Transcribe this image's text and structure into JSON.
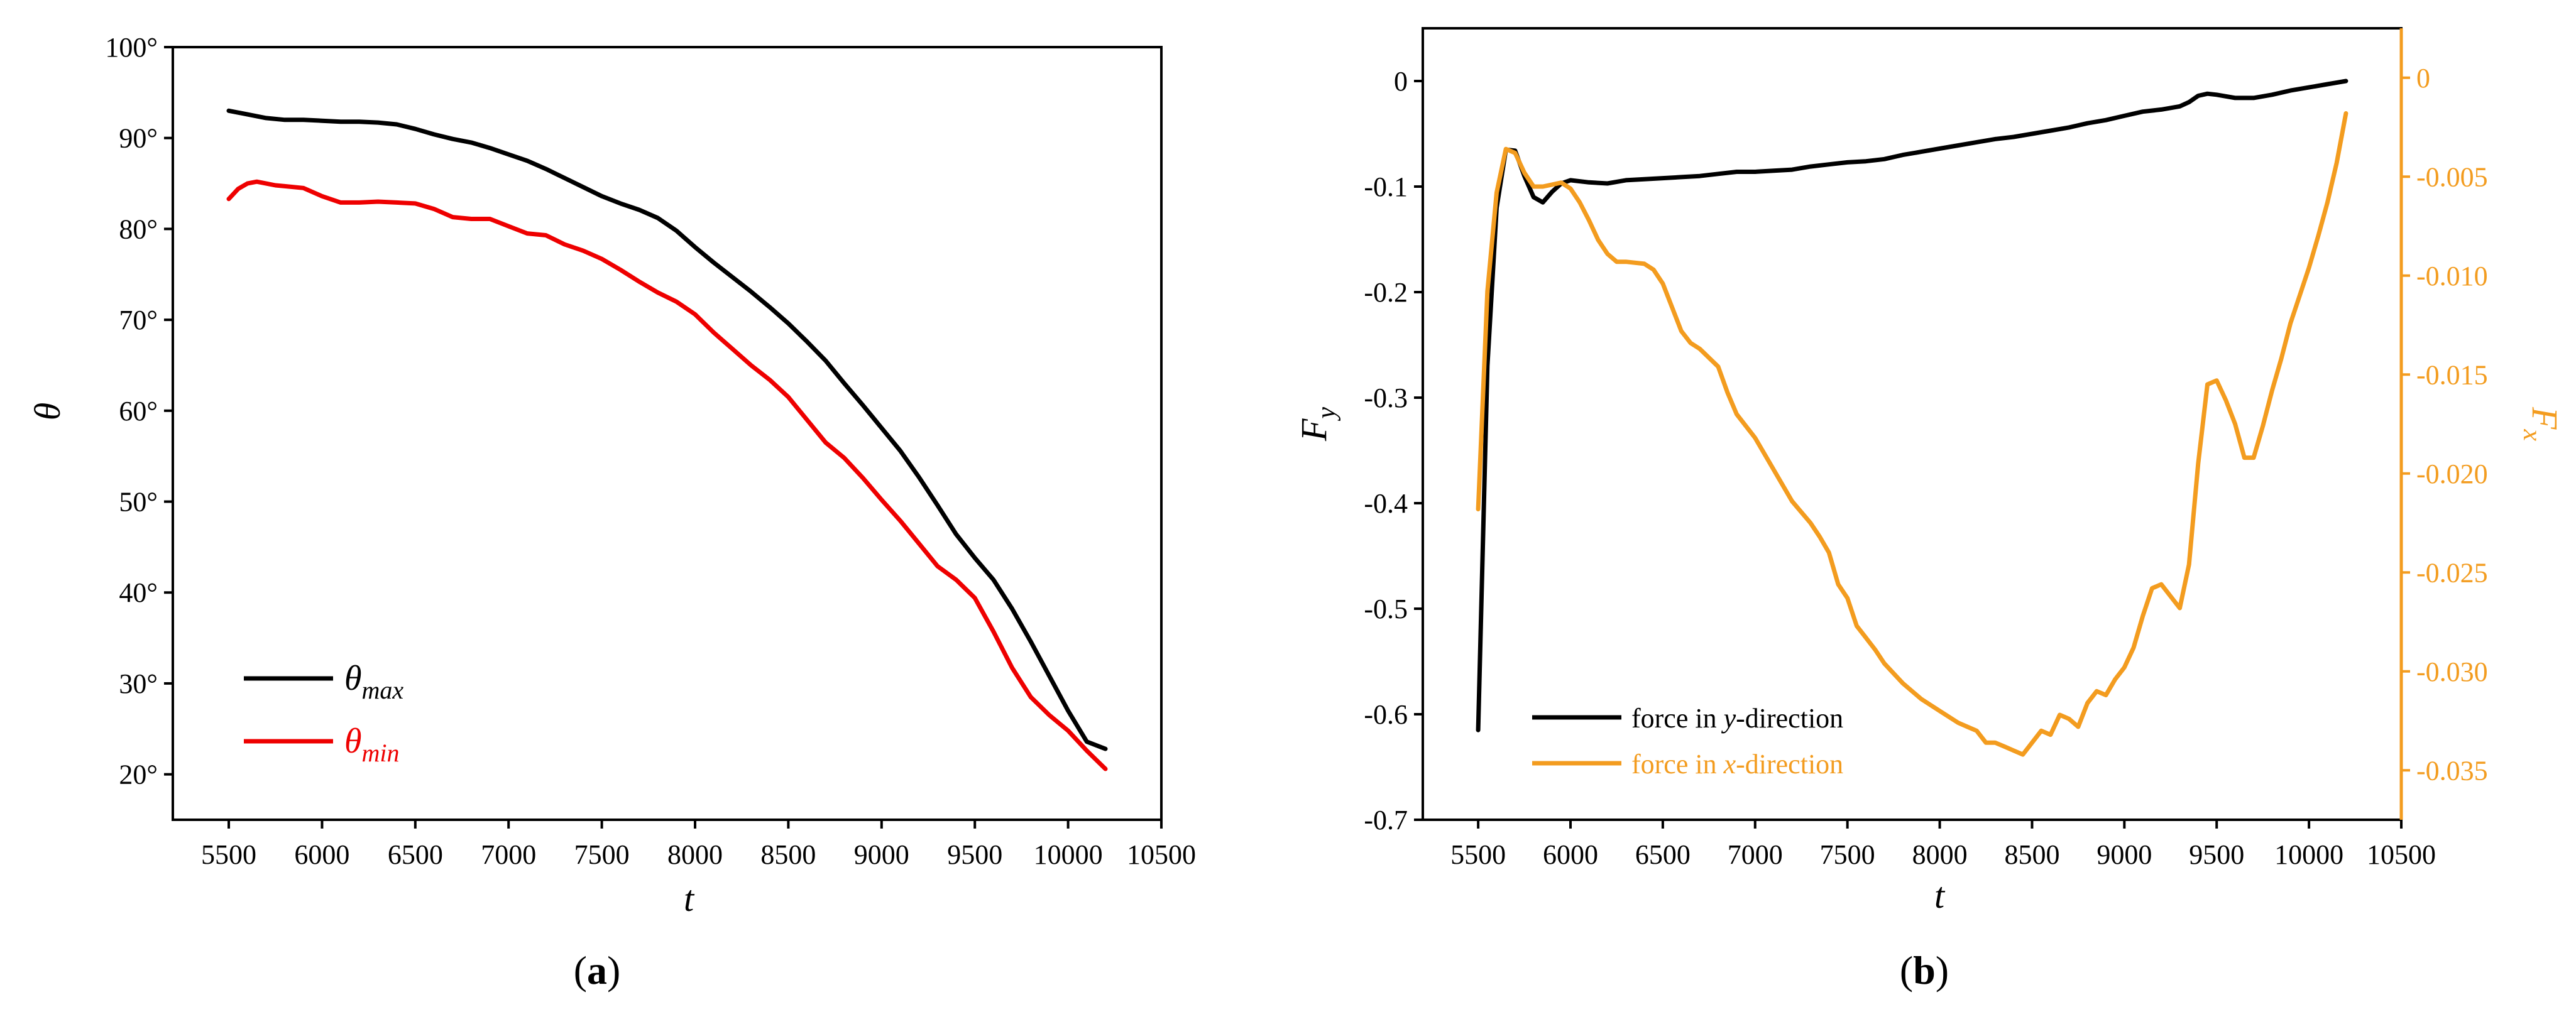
{
  "chart_data": [
    {
      "panel": "(a)",
      "panel_label": {
        "open": "(",
        "letter": "a",
        "close": ")"
      },
      "type": "line",
      "title": "",
      "xlabel": "t",
      "ylabel": "θ",
      "xlim": [
        5200,
        10500
      ],
      "ylim": [
        15,
        100
      ],
      "x_ticks": [
        5500,
        6000,
        6500,
        7000,
        7500,
        8000,
        8500,
        9000,
        9500,
        10000,
        10500
      ],
      "x_tick_labels": [
        "5500",
        "6000",
        "6500",
        "7000",
        "7500",
        "8000",
        "8500",
        "9000",
        "9500",
        "10000",
        "10500"
      ],
      "y_ticks": [
        20,
        30,
        40,
        50,
        60,
        70,
        80,
        90,
        100
      ],
      "y_tick_labels": [
        "20°",
        "30°",
        "40°",
        "50°",
        "60°",
        "70°",
        "80°",
        "90°",
        "100°"
      ],
      "legend_position": "bottom-left",
      "series": [
        {
          "name": "θmax",
          "legend_main": "θ",
          "legend_sub": "max",
          "color": "#000000",
          "x": [
            5500,
            5600,
            5700,
            5800,
            5900,
            6000,
            6100,
            6200,
            6300,
            6400,
            6500,
            6600,
            6700,
            6800,
            6900,
            7000,
            7100,
            7200,
            7300,
            7400,
            7500,
            7600,
            7700,
            7800,
            7900,
            8000,
            8100,
            8200,
            8300,
            8400,
            8500,
            8600,
            8700,
            8800,
            8900,
            9000,
            9100,
            9200,
            9300,
            9400,
            9500,
            9600,
            9700,
            9800,
            9900,
            10000,
            10100,
            10200
          ],
          "values": [
            93.0,
            92.6,
            92.2,
            92.0,
            92.0,
            91.9,
            91.8,
            91.8,
            91.7,
            91.5,
            91.0,
            90.4,
            89.9,
            89.5,
            88.9,
            88.2,
            87.5,
            86.6,
            85.6,
            84.6,
            83.6,
            82.8,
            82.1,
            81.2,
            79.8,
            78.0,
            76.3,
            74.7,
            73.1,
            71.4,
            69.6,
            67.6,
            65.5,
            63.0,
            60.6,
            58.1,
            55.6,
            52.7,
            49.6,
            46.4,
            43.8,
            41.4,
            38.2,
            34.6,
            30.8,
            27.0,
            23.6,
            22.8
          ]
        },
        {
          "name": "θmin",
          "legend_main": "θ",
          "legend_sub": "min",
          "color": "#ee0000",
          "x": [
            5500,
            5550,
            5600,
            5650,
            5700,
            5750,
            5800,
            5900,
            6000,
            6100,
            6200,
            6300,
            6400,
            6500,
            6600,
            6700,
            6800,
            6900,
            7000,
            7100,
            7200,
            7300,
            7400,
            7500,
            7600,
            7700,
            7800,
            7900,
            8000,
            8100,
            8200,
            8300,
            8400,
            8500,
            8600,
            8700,
            8800,
            8900,
            9000,
            9100,
            9200,
            9300,
            9400,
            9500,
            9600,
            9700,
            9800,
            9900,
            10000,
            10100,
            10200
          ],
          "values": [
            83.3,
            84.4,
            85.0,
            85.2,
            85.0,
            84.8,
            84.7,
            84.5,
            83.6,
            82.9,
            82.9,
            83.0,
            82.9,
            82.8,
            82.2,
            81.3,
            81.1,
            81.1,
            80.3,
            79.5,
            79.3,
            78.3,
            77.6,
            76.7,
            75.5,
            74.2,
            73.0,
            72.0,
            70.6,
            68.6,
            66.8,
            65.0,
            63.4,
            61.5,
            59.0,
            56.5,
            54.8,
            52.6,
            50.2,
            47.9,
            45.4,
            42.9,
            41.4,
            39.4,
            35.7,
            31.7,
            28.5,
            26.5,
            24.8,
            22.6,
            20.6
          ]
        }
      ]
    },
    {
      "panel": "(b)",
      "panel_label": {
        "open": "(",
        "letter": "b",
        "close": ")"
      },
      "type": "line",
      "title": "",
      "xlabel": "t",
      "ylabel": "F",
      "ylabel_sub": "y",
      "y2label": "F",
      "y2label_sub": "x",
      "xlim": [
        5200,
        10500
      ],
      "ylim": [
        -0.7,
        0.05
      ],
      "y2lim": [
        -0.0375,
        0.0025
      ],
      "x_ticks": [
        5500,
        6000,
        6500,
        7000,
        7500,
        8000,
        8500,
        9000,
        9500,
        10000,
        10500
      ],
      "x_tick_labels": [
        "5500",
        "6000",
        "6500",
        "7000",
        "7500",
        "8000",
        "8500",
        "9000",
        "9500",
        "10000",
        "10500"
      ],
      "y_ticks": [
        0,
        -0.1,
        -0.2,
        -0.3,
        -0.4,
        -0.5,
        -0.6,
        -0.7
      ],
      "y_tick_labels": [
        "0",
        "-0.1",
        "-0.2",
        "-0.3",
        "-0.4",
        "-0.5",
        "-0.6",
        "-0.7"
      ],
      "y2_ticks": [
        0,
        -0.005,
        -0.01,
        -0.015,
        -0.02,
        -0.025,
        -0.03,
        -0.035
      ],
      "y2_tick_labels": [
        "0",
        "-0.005",
        "-0.010",
        "-0.015",
        "-0.020",
        "-0.025",
        "-0.030",
        "-0.035"
      ],
      "y2_color": "#f39c1f",
      "legend_position": "bottom-left",
      "series": [
        {
          "name": "force in y-direction",
          "legend_pre": "force in ",
          "legend_var": "y",
          "legend_post": "-direction",
          "axis": "left",
          "color": "#000000",
          "x": [
            5500,
            5550,
            5600,
            5650,
            5700,
            5750,
            5800,
            5850,
            5900,
            5950,
            6000,
            6100,
            6200,
            6300,
            6400,
            6500,
            6600,
            6700,
            6800,
            6900,
            7000,
            7100,
            7200,
            7300,
            7400,
            7500,
            7600,
            7700,
            7800,
            7900,
            8000,
            8100,
            8200,
            8300,
            8400,
            8500,
            8600,
            8700,
            8800,
            8900,
            9000,
            9100,
            9200,
            9300,
            9350,
            9400,
            9450,
            9500,
            9600,
            9700,
            9800,
            9900,
            10000,
            10100,
            10200
          ],
          "values": [
            -0.615,
            -0.27,
            -0.12,
            -0.065,
            -0.066,
            -0.09,
            -0.11,
            -0.115,
            -0.105,
            -0.097,
            -0.094,
            -0.096,
            -0.097,
            -0.094,
            -0.093,
            -0.092,
            -0.091,
            -0.09,
            -0.088,
            -0.086,
            -0.086,
            -0.085,
            -0.084,
            -0.081,
            -0.079,
            -0.077,
            -0.076,
            -0.074,
            -0.07,
            -0.067,
            -0.064,
            -0.061,
            -0.058,
            -0.055,
            -0.053,
            -0.05,
            -0.047,
            -0.044,
            -0.04,
            -0.037,
            -0.033,
            -0.029,
            -0.027,
            -0.024,
            -0.02,
            -0.014,
            -0.012,
            -0.013,
            -0.016,
            -0.016,
            -0.013,
            -0.009,
            -0.006,
            -0.003,
            0.0
          ]
        },
        {
          "name": "force in x-direction",
          "legend_pre": "force in ",
          "legend_var": "x",
          "legend_post": "-direction",
          "axis": "right",
          "color": "#f39c1f",
          "x": [
            5500,
            5550,
            5600,
            5650,
            5700,
            5750,
            5800,
            5850,
            5900,
            5950,
            6000,
            6050,
            6100,
            6150,
            6200,
            6250,
            6300,
            6400,
            6450,
            6500,
            6550,
            6600,
            6650,
            6700,
            6800,
            6850,
            6900,
            7000,
            7100,
            7200,
            7300,
            7350,
            7400,
            7450,
            7500,
            7550,
            7600,
            7650,
            7700,
            7800,
            7900,
            8000,
            8100,
            8150,
            8200,
            8250,
            8300,
            8350,
            8400,
            8450,
            8500,
            8550,
            8600,
            8650,
            8700,
            8750,
            8800,
            8850,
            8900,
            8950,
            9000,
            9050,
            9100,
            9150,
            9200,
            9250,
            9300,
            9350,
            9400,
            9450,
            9500,
            9550,
            9600,
            9650,
            9700,
            9750,
            9800,
            9850,
            9900,
            9950,
            10000,
            10050,
            10100,
            10150,
            10200
          ],
          "values": [
            -0.0218,
            -0.0108,
            -0.0058,
            -0.0036,
            -0.0038,
            -0.0048,
            -0.0055,
            -0.0055,
            -0.0054,
            -0.0053,
            -0.0056,
            -0.0063,
            -0.0072,
            -0.0082,
            -0.0089,
            -0.0093,
            -0.0093,
            -0.0094,
            -0.0097,
            -0.0104,
            -0.0116,
            -0.0128,
            -0.0134,
            -0.0137,
            -0.0146,
            -0.0159,
            -0.017,
            -0.0182,
            -0.0198,
            -0.0214,
            -0.0225,
            -0.0232,
            -0.024,
            -0.0256,
            -0.0263,
            -0.0277,
            -0.0283,
            -0.0289,
            -0.0296,
            -0.0306,
            -0.0314,
            -0.032,
            -0.0326,
            -0.0328,
            -0.033,
            -0.0336,
            -0.0336,
            -0.0338,
            -0.034,
            -0.0342,
            -0.0336,
            -0.033,
            -0.0332,
            -0.0322,
            -0.0324,
            -0.0328,
            -0.0316,
            -0.031,
            -0.0312,
            -0.0304,
            -0.0298,
            -0.0288,
            -0.0272,
            -0.0258,
            -0.0256,
            -0.0262,
            -0.0268,
            -0.0246,
            -0.0195,
            -0.0155,
            -0.0153,
            -0.0163,
            -0.0175,
            -0.0192,
            -0.0192,
            -0.0176,
            -0.0158,
            -0.0142,
            -0.0124,
            -0.011,
            -0.0096,
            -0.008,
            -0.0063,
            -0.0043,
            -0.0018
          ]
        }
      ]
    }
  ]
}
